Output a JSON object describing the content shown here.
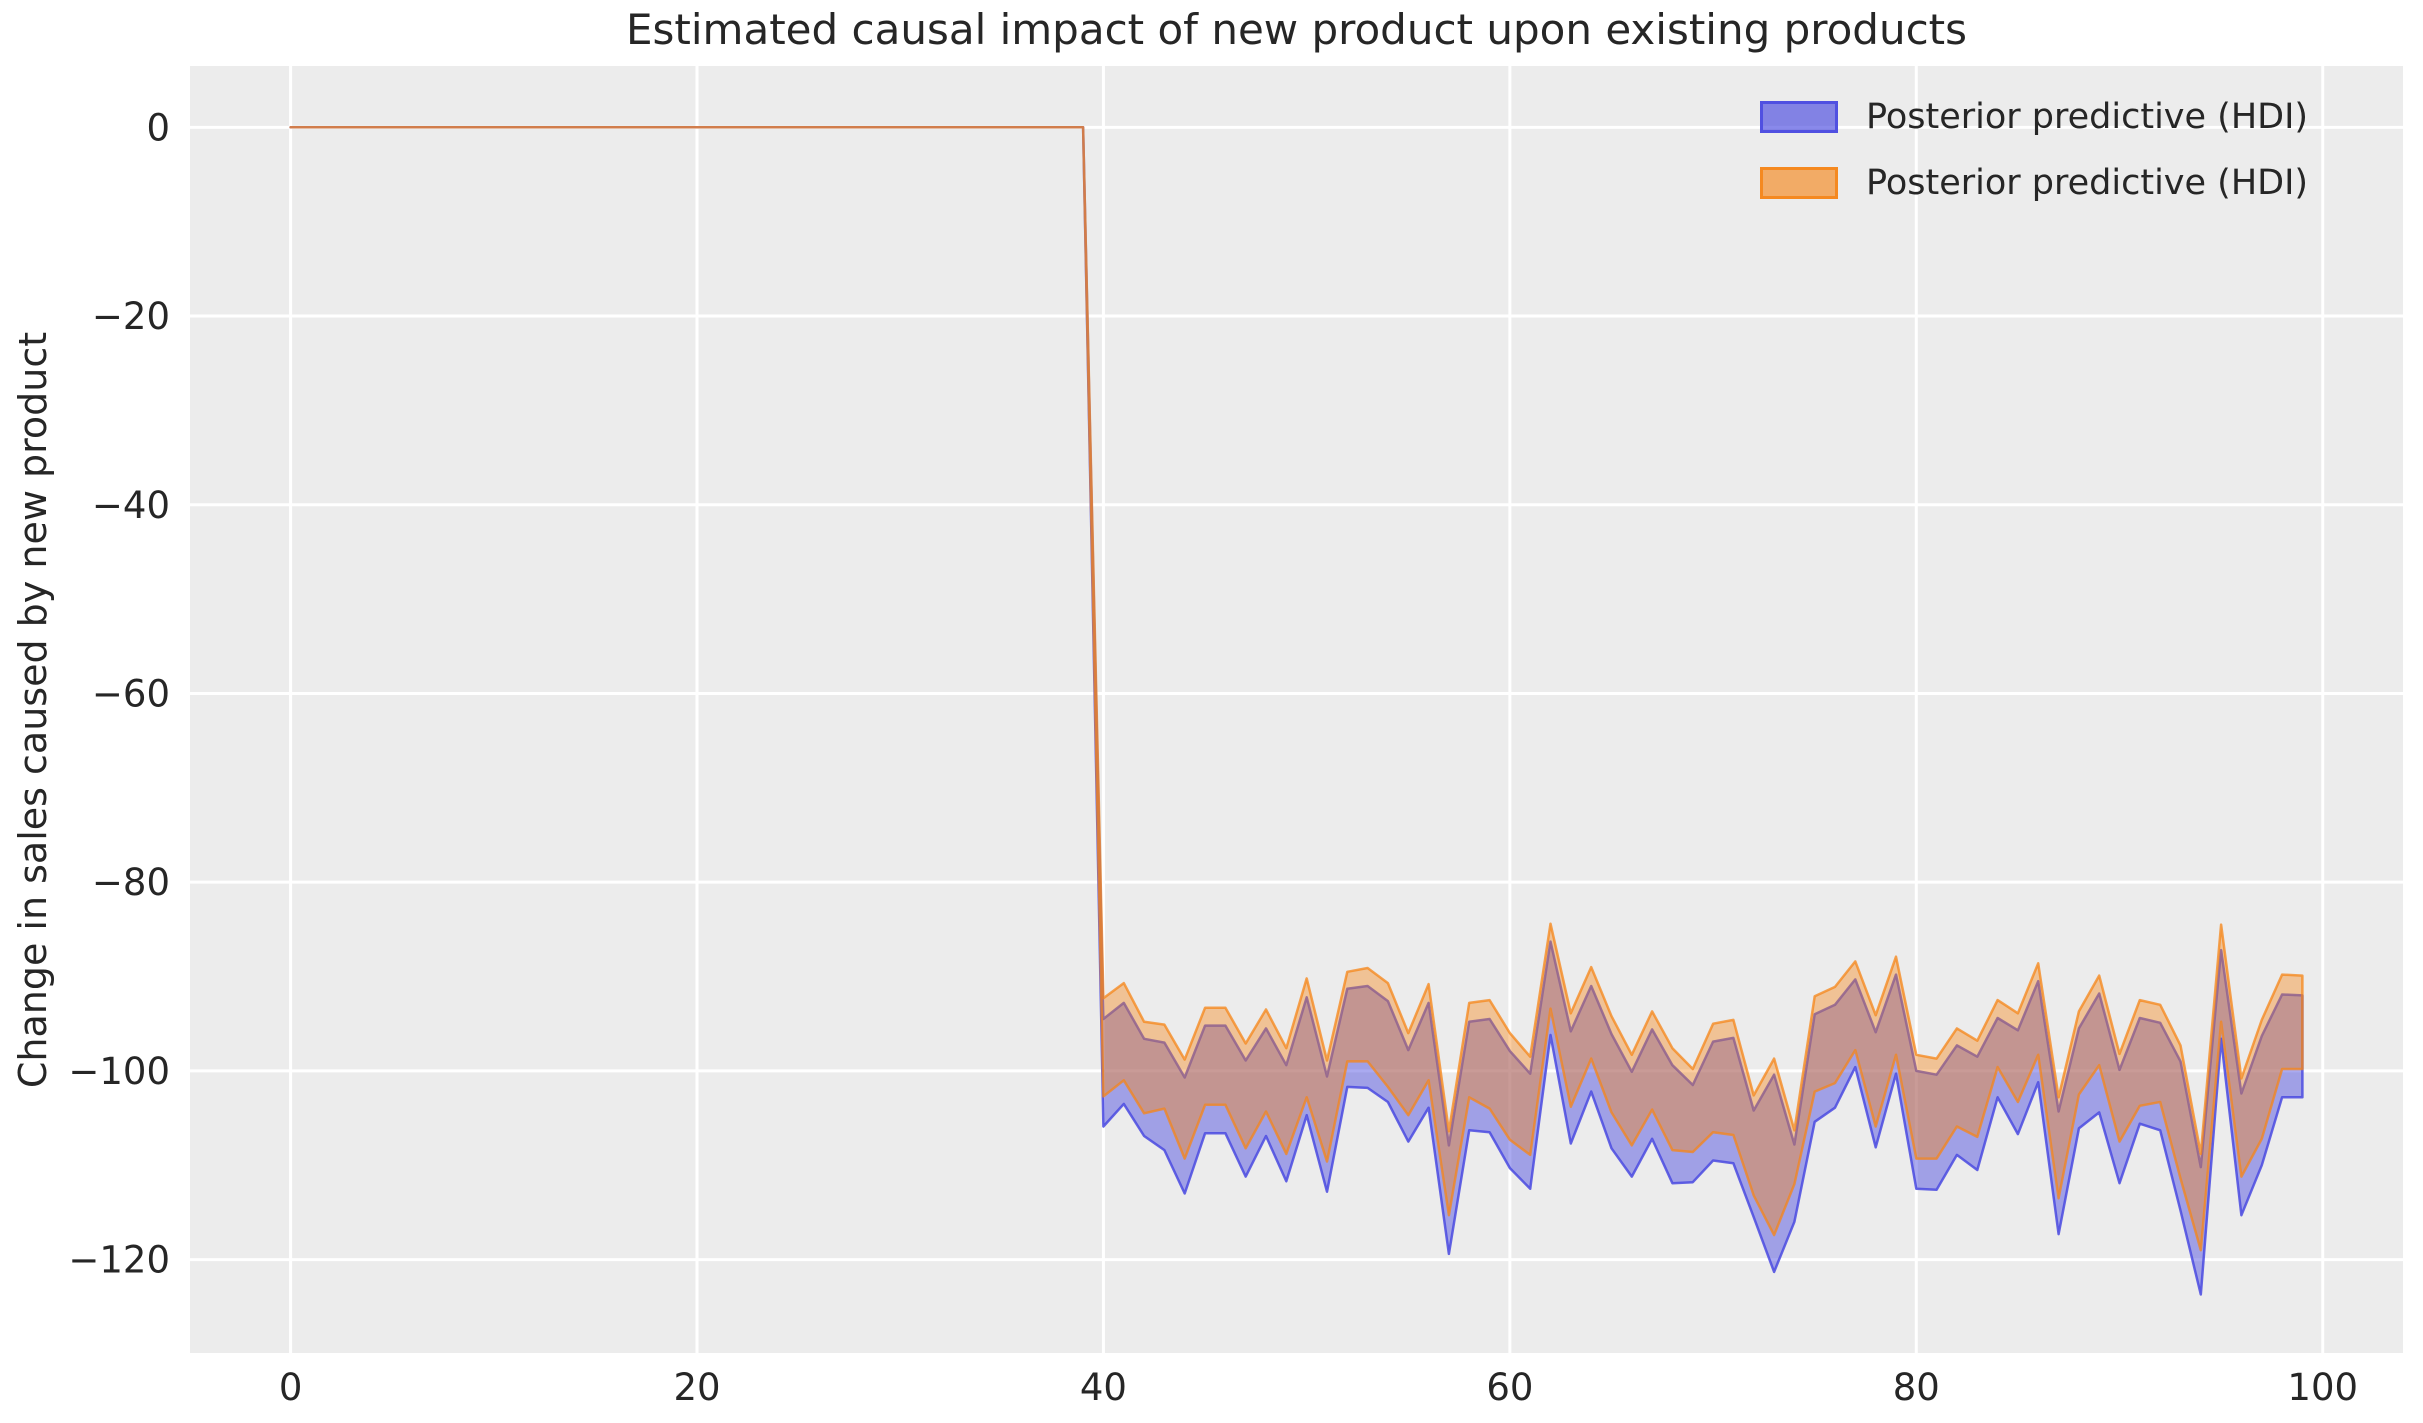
{
  "title": "Estimated causal impact of new product upon existing products",
  "ylabel": "Change in sales caused by new product",
  "legend": {
    "position": "upper right",
    "entries": [
      {
        "label": "Posterior predictive (HDI)",
        "color": "#4a4ae0",
        "fill": "rgba(74,74,224,0.65)",
        "border": "rgba(74,74,224,0.9)"
      },
      {
        "label": "Posterior predictive (HDI)",
        "color": "#f58518",
        "fill": "rgba(245,133,24,0.63)",
        "border": "rgba(245,133,24,0.9)"
      }
    ]
  },
  "chart_data": {
    "type": "area",
    "title": "Estimated causal impact of new product upon existing products",
    "xlabel": "",
    "ylabel": "Change in sales caused by new product",
    "xlim": [
      -4.95,
      103.95
    ],
    "ylim": [
      -129.9,
      6.5
    ],
    "xticks": [
      0,
      20,
      40,
      60,
      80,
      100
    ],
    "yticks": [
      0,
      -20,
      -40,
      -60,
      -80,
      -100,
      -120
    ],
    "grid": true,
    "plot_background": "#ececec",
    "grid_color": "#ffffff",
    "text_color": "#262626",
    "x": [
      0,
      1,
      2,
      3,
      4,
      5,
      6,
      7,
      8,
      9,
      10,
      11,
      12,
      13,
      14,
      15,
      16,
      17,
      18,
      19,
      20,
      21,
      22,
      23,
      24,
      25,
      26,
      27,
      28,
      29,
      30,
      31,
      32,
      33,
      34,
      35,
      36,
      37,
      38,
      39,
      40,
      41,
      42,
      43,
      44,
      45,
      46,
      47,
      48,
      49,
      50,
      51,
      52,
      53,
      54,
      55,
      56,
      57,
      58,
      59,
      60,
      61,
      62,
      63,
      64,
      65,
      66,
      67,
      68,
      69,
      70,
      71,
      72,
      73,
      74,
      75,
      76,
      77,
      78,
      79,
      80,
      81,
      82,
      83,
      84,
      85,
      86,
      87,
      88,
      89,
      90,
      91,
      92,
      93,
      94,
      95,
      96,
      97,
      98,
      99
    ],
    "series": [
      {
        "name": "Posterior predictive (HDI)",
        "type": "band",
        "color": "#4a4ae0",
        "fill_opacity": 0.47,
        "edge_opacity": 0.85,
        "upper": [
          0,
          0,
          0,
          0,
          0,
          0,
          0,
          0,
          0,
          0,
          0,
          0,
          0,
          0,
          0,
          0,
          0,
          0,
          0,
          0,
          0,
          0,
          0,
          0,
          0,
          0,
          0,
          0,
          0,
          0,
          0,
          0,
          0,
          0,
          0,
          0,
          0,
          0,
          0,
          0,
          -94.5,
          -92.8,
          -96.6,
          -97.0,
          -100.7,
          -95.2,
          -95.2,
          -98.9,
          -95.5,
          -99.4,
          -92.2,
          -100.6,
          -91.3,
          -91.0,
          -92.6,
          -97.8,
          -92.8,
          -107.9,
          -94.8,
          -94.5,
          -97.9,
          -100.3,
          -86.3,
          -95.8,
          -91.0,
          -96.1,
          -100.1,
          -95.6,
          -99.4,
          -101.5,
          -96.9,
          -96.5,
          -104.2,
          -100.4,
          -107.8,
          -94.0,
          -93.0,
          -90.3,
          -95.9,
          -89.8,
          -100.0,
          -100.4,
          -97.3,
          -98.5,
          -94.4,
          -95.7,
          -90.5,
          -104.3,
          -95.5,
          -91.8,
          -99.9,
          -94.4,
          -94.9,
          -99.0,
          -110.2,
          -87.2,
          -102.4,
          -96.3,
          -91.9,
          -92.0
        ],
        "lower": [
          0,
          0,
          0,
          0,
          0,
          0,
          0,
          0,
          0,
          0,
          0,
          0,
          0,
          0,
          0,
          0,
          0,
          0,
          0,
          0,
          0,
          0,
          0,
          0,
          0,
          0,
          0,
          0,
          0,
          0,
          0,
          0,
          0,
          0,
          0,
          0,
          0,
          0,
          0,
          0,
          -105.9,
          -103.5,
          -106.9,
          -108.4,
          -113.0,
          -106.6,
          -106.6,
          -111.2,
          -106.9,
          -111.7,
          -104.7,
          -112.8,
          -101.7,
          -101.8,
          -103.3,
          -107.5,
          -103.9,
          -119.4,
          -106.3,
          -106.5,
          -110.3,
          -112.5,
          -96.2,
          -107.7,
          -102.2,
          -108.2,
          -111.2,
          -107.2,
          -111.9,
          -111.8,
          -109.5,
          -109.8,
          -115.5,
          -121.3,
          -116.0,
          -105.4,
          -103.9,
          -99.6,
          -108.1,
          -100.3,
          -112.5,
          -112.6,
          -108.9,
          -110.5,
          -102.8,
          -106.7,
          -101.2,
          -117.3,
          -106.1,
          -104.4,
          -111.9,
          -105.6,
          -106.3,
          -114.8,
          -123.7,
          -96.6,
          -115.3,
          -110.0,
          -102.8,
          -102.8
        ]
      },
      {
        "name": "Posterior predictive (HDI)",
        "type": "band",
        "color": "#f58518",
        "fill_opacity": 0.41,
        "edge_opacity": 0.75,
        "upper": [
          0,
          0,
          0,
          0,
          0,
          0,
          0,
          0,
          0,
          0,
          0,
          0,
          0,
          0,
          0,
          0,
          0,
          0,
          0,
          0,
          0,
          0,
          0,
          0,
          0,
          0,
          0,
          0,
          0,
          0,
          0,
          0,
          0,
          0,
          0,
          0,
          0,
          0,
          0,
          0,
          -92.3,
          -90.7,
          -94.8,
          -95.1,
          -98.8,
          -93.3,
          -93.3,
          -97.1,
          -93.5,
          -97.6,
          -90.2,
          -98.9,
          -89.5,
          -89.1,
          -90.7,
          -96.0,
          -90.8,
          -106.4,
          -92.8,
          -92.5,
          -96.0,
          -98.5,
          -84.4,
          -93.9,
          -89.0,
          -94.2,
          -98.3,
          -93.7,
          -97.6,
          -99.8,
          -95.0,
          -94.6,
          -102.6,
          -98.7,
          -106.3,
          -92.1,
          -91.1,
          -88.4,
          -94.1,
          -87.9,
          -98.3,
          -98.7,
          -95.5,
          -96.8,
          -92.5,
          -93.9,
          -88.6,
          -102.8,
          -93.7,
          -89.9,
          -98.2,
          -92.5,
          -93.0,
          -97.3,
          -108.8,
          -84.5,
          -100.8,
          -94.6,
          -89.8,
          -89.9
        ],
        "lower": [
          0,
          0,
          0,
          0,
          0,
          0,
          0,
          0,
          0,
          0,
          0,
          0,
          0,
          0,
          0,
          0,
          0,
          0,
          0,
          0,
          0,
          0,
          0,
          0,
          0,
          0,
          0,
          0,
          0,
          0,
          0,
          0,
          0,
          0,
          0,
          0,
          0,
          0,
          0,
          0,
          -102.7,
          -101.0,
          -104.5,
          -104.0,
          -109.3,
          -103.6,
          -103.6,
          -108.2,
          -104.3,
          -108.8,
          -102.8,
          -109.6,
          -99.0,
          -99.0,
          -101.7,
          -104.7,
          -101.0,
          -115.3,
          -102.8,
          -104.0,
          -107.3,
          -108.9,
          -93.4,
          -103.8,
          -98.7,
          -104.4,
          -107.9,
          -104.1,
          -108.4,
          -108.6,
          -106.5,
          -106.8,
          -113.2,
          -117.4,
          -112.0,
          -102.2,
          -101.3,
          -97.8,
          -105.9,
          -98.3,
          -109.3,
          -109.3,
          -105.9,
          -107.0,
          -99.6,
          -103.3,
          -98.3,
          -113.5,
          -102.5,
          -99.4,
          -107.5,
          -103.7,
          -103.3,
          -111.4,
          -119.0,
          -94.8,
          -111.2,
          -107.2,
          -99.8,
          -99.8
        ]
      }
    ]
  }
}
